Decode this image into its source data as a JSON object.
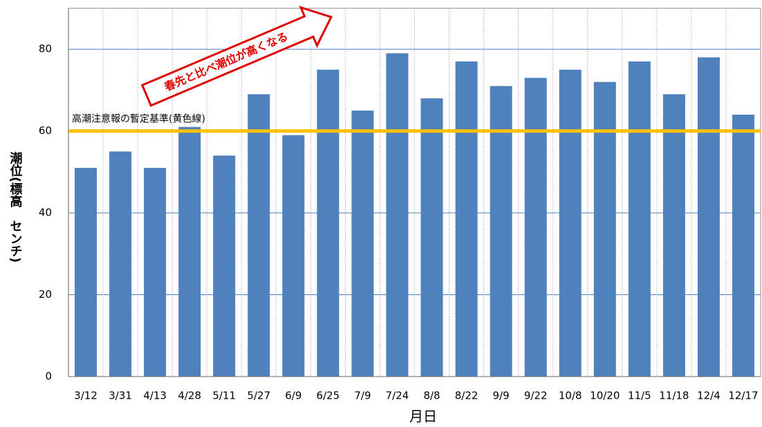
{
  "chart_data": {
    "type": "bar",
    "x_label": "月日",
    "y_label": "潮位(標高　センチ)",
    "categories": [
      "3/12",
      "3/31",
      "4/13",
      "4/28",
      "5/11",
      "5/27",
      "6/9",
      "6/25",
      "7/9",
      "7/24",
      "8/8",
      "8/22",
      "9/9",
      "9/22",
      "10/8",
      "10/20",
      "11/5",
      "11/18",
      "12/4",
      "12/17"
    ],
    "values": [
      51,
      55,
      51,
      61,
      54,
      69,
      59,
      75,
      65,
      79,
      68,
      77,
      71,
      73,
      75,
      72,
      77,
      69,
      78,
      64
    ],
    "color": "#4f81bd",
    "ylim": [
      0,
      90
    ],
    "yticks": [
      0,
      20,
      40,
      60,
      80
    ],
    "grid": true,
    "reference_line": {
      "value": 60,
      "label": "高潮注意報の暫定基準(黄色線)",
      "color": "#ffc000"
    },
    "annotation": "春先と比べ潮位が高くなる"
  }
}
